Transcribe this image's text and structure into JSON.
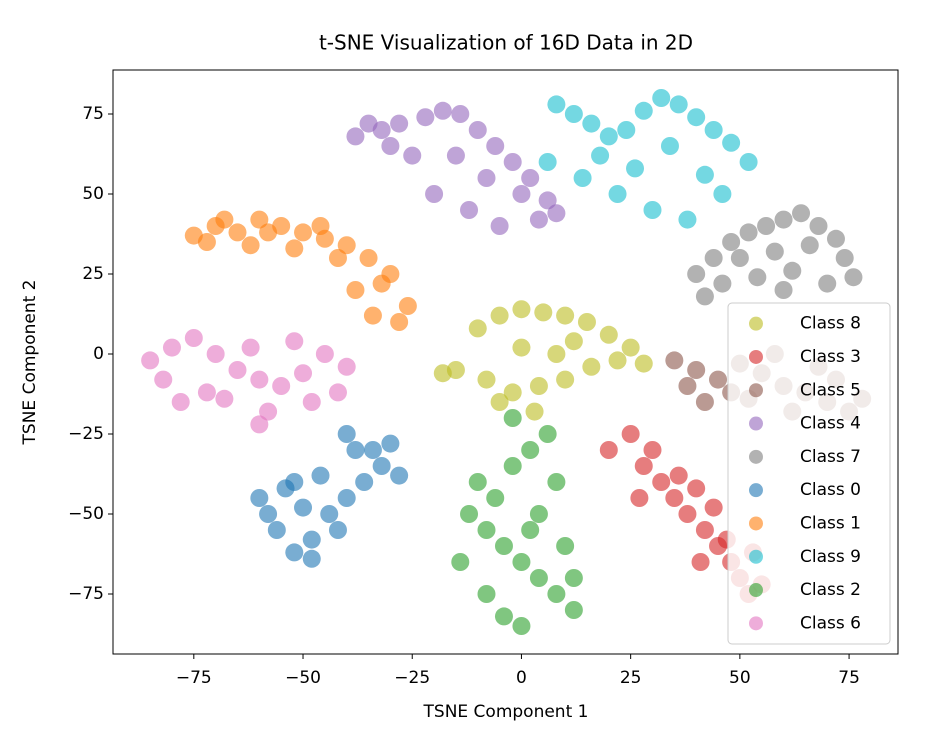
{
  "chart_data": {
    "type": "scatter",
    "title": "t-SNE Visualization of 16D Data in 2D",
    "x_label": "TSNE Component 1",
    "y_label": "TSNE Component 2",
    "xlim": [
      -93.5,
      86.2
    ],
    "ylim": [
      -93.75,
      88.75
    ],
    "xticks": [
      {
        "value": -75,
        "label": "−75"
      },
      {
        "value": -50,
        "label": "−50"
      },
      {
        "value": -25,
        "label": "−25"
      },
      0,
      25,
      50,
      75
    ],
    "yticks": [
      {
        "value": -75,
        "label": "−75"
      },
      {
        "value": -50,
        "label": "−50"
      },
      {
        "value": -25,
        "label": "−25"
      },
      0,
      25,
      50,
      75
    ],
    "grid": false,
    "legend": "lower right",
    "series": [
      {
        "name": "Class 8",
        "color": "#bcbd22",
        "x": [
          -15,
          -10,
          -5,
          0,
          5,
          10,
          15,
          20,
          25,
          -8,
          -2,
          4,
          10,
          16,
          22,
          -18,
          0,
          8,
          -5,
          12,
          28,
          3
        ],
        "y": [
          -5,
          8,
          12,
          14,
          13,
          12,
          10,
          6,
          2,
          -8,
          -12,
          -10,
          -8,
          -4,
          -2,
          -6,
          2,
          0,
          -15,
          4,
          -3,
          -18
        ]
      },
      {
        "name": "Class 3",
        "color": "#d62728",
        "x": [
          20,
          25,
          28,
          32,
          35,
          38,
          40,
          42,
          45,
          48,
          50,
          52,
          30,
          36,
          44,
          47,
          53,
          55,
          27,
          41
        ],
        "y": [
          -30,
          -25,
          -35,
          -40,
          -45,
          -50,
          -42,
          -55,
          -60,
          -65,
          -70,
          -75,
          -30,
          -38,
          -48,
          -58,
          -62,
          -72,
          -45,
          -65
        ]
      },
      {
        "name": "Class 5",
        "color": "#8c564b",
        "x": [
          35,
          40,
          45,
          50,
          55,
          60,
          65,
          70,
          75,
          42,
          52,
          62,
          72,
          48,
          58,
          68,
          78,
          38
        ],
        "y": [
          -2,
          -5,
          -8,
          -3,
          -6,
          -10,
          -12,
          -15,
          -18,
          -15,
          -14,
          -18,
          -8,
          -12,
          0,
          -4,
          -14,
          -10
        ]
      },
      {
        "name": "Class 4",
        "color": "#9467bd",
        "x": [
          -38,
          -32,
          -28,
          -22,
          -18,
          -14,
          -10,
          -6,
          -2,
          2,
          6,
          -25,
          -15,
          -8,
          0,
          4,
          -12,
          -20,
          -30,
          -5,
          8,
          -35
        ],
        "y": [
          68,
          70,
          72,
          74,
          76,
          75,
          70,
          65,
          60,
          55,
          48,
          62,
          62,
          55,
          50,
          42,
          45,
          50,
          65,
          40,
          44,
          72
        ]
      },
      {
        "name": "Class 7",
        "color": "#7f7f7f",
        "x": [
          40,
          44,
          48,
          52,
          56,
          60,
          64,
          68,
          72,
          74,
          46,
          54,
          62,
          70,
          50,
          58,
          66,
          42,
          76,
          60
        ],
        "y": [
          25,
          30,
          35,
          38,
          40,
          42,
          44,
          40,
          36,
          30,
          22,
          24,
          26,
          22,
          30,
          32,
          34,
          18,
          24,
          20
        ]
      },
      {
        "name": "Class 0",
        "color": "#1f77b4",
        "x": [
          -60,
          -56,
          -52,
          -48,
          -44,
          -40,
          -36,
          -32,
          -28,
          -58,
          -50,
          -42,
          -34,
          -54,
          -46,
          -38,
          -30,
          -48,
          -52,
          -40
        ],
        "y": [
          -45,
          -55,
          -62,
          -58,
          -50,
          -45,
          -40,
          -35,
          -38,
          -50,
          -48,
          -55,
          -30,
          -42,
          -38,
          -30,
          -28,
          -64,
          -40,
          -25
        ]
      },
      {
        "name": "Class 1",
        "color": "#ff7f0e",
        "x": [
          -75,
          -70,
          -65,
          -60,
          -55,
          -50,
          -45,
          -40,
          -35,
          -30,
          -26,
          -72,
          -62,
          -52,
          -42,
          -38,
          -32,
          -28,
          -58,
          -46,
          -34,
          -68
        ],
        "y": [
          37,
          40,
          38,
          42,
          40,
          38,
          36,
          34,
          30,
          25,
          15,
          35,
          34,
          33,
          30,
          20,
          22,
          10,
          38,
          40,
          12,
          42
        ]
      },
      {
        "name": "Class 9",
        "color": "#17becf",
        "x": [
          8,
          12,
          16,
          20,
          24,
          28,
          32,
          36,
          40,
          44,
          48,
          52,
          14,
          22,
          30,
          38,
          46,
          18,
          26,
          34,
          42,
          6
        ],
        "y": [
          78,
          75,
          72,
          68,
          70,
          76,
          80,
          78,
          74,
          70,
          66,
          60,
          55,
          50,
          45,
          42,
          50,
          62,
          58,
          65,
          56,
          60
        ]
      },
      {
        "name": "Class 2",
        "color": "#2ca02c",
        "x": [
          -12,
          -8,
          -4,
          0,
          4,
          8,
          12,
          -10,
          -6,
          -2,
          2,
          6,
          10,
          -4,
          0,
          4,
          -14,
          8,
          -2,
          2,
          12,
          -8
        ],
        "y": [
          -50,
          -55,
          -60,
          -65,
          -70,
          -75,
          -80,
          -40,
          -45,
          -35,
          -30,
          -25,
          -60,
          -82,
          -85,
          -50,
          -65,
          -40,
          -20,
          -55,
          -70,
          -75
        ]
      },
      {
        "name": "Class 6",
        "color": "#e377c2",
        "x": [
          -85,
          -80,
          -75,
          -70,
          -65,
          -60,
          -55,
          -50,
          -45,
          -40,
          -82,
          -72,
          -62,
          -52,
          -42,
          -78,
          -68,
          -58,
          -48,
          -60
        ],
        "y": [
          -2,
          2,
          5,
          0,
          -5,
          -8,
          -10,
          -6,
          0,
          -4,
          -8,
          -12,
          2,
          4,
          -12,
          -15,
          -14,
          -18,
          -15,
          -22
        ]
      }
    ]
  }
}
